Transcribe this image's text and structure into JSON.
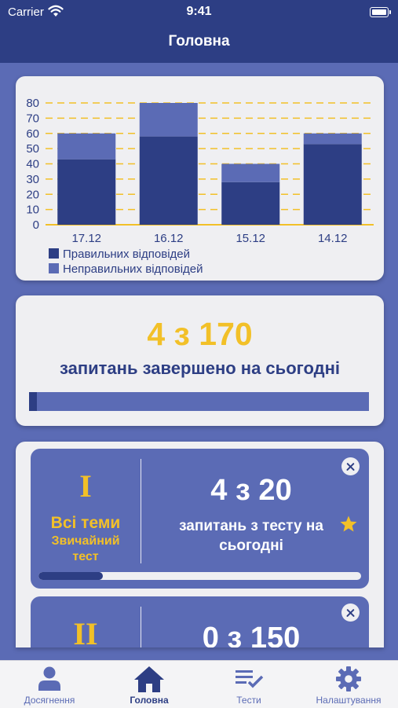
{
  "status_bar": {
    "carrier": "Carrier",
    "time": "9:41"
  },
  "nav": {
    "title": "Головна"
  },
  "colors": {
    "primary": "#2d3e84",
    "secondary": "#5b6bb5",
    "accent": "#f2c028",
    "card": "#efeff2"
  },
  "chart_data": {
    "type": "bar",
    "stacked": true,
    "categories": [
      "17.12",
      "16.12",
      "15.12",
      "14.12"
    ],
    "series": [
      {
        "name": "Правильних відповідей",
        "values": [
          43,
          58,
          28,
          53
        ],
        "color": "#2d3e84"
      },
      {
        "name": "Неправильних відповідей",
        "values": [
          17,
          22,
          12,
          7
        ],
        "color": "#5b6bb5"
      }
    ],
    "yticks": [
      "0",
      "10",
      "20",
      "30",
      "40",
      "50",
      "60",
      "70",
      "80"
    ],
    "ylim": [
      0,
      80
    ],
    "grid": "dashed yellow horizontal",
    "legend": "bottom-left"
  },
  "daily_progress": {
    "count_text": "4 з 170",
    "label": "запитань завершено на сьогодні",
    "progress": 0.024
  },
  "tests": [
    {
      "numeral": "I",
      "topic": "Всі теми",
      "mode": "Звичайний тест",
      "count_text": "4 з 20",
      "description": "запитань з тесту на сьогодні",
      "progress": 0.2,
      "icons": [
        "close-icon",
        "star-icon"
      ]
    },
    {
      "numeral": "II",
      "count_text": "0 з 150",
      "icons": [
        "close-icon"
      ]
    }
  ],
  "tab_bar": {
    "items": [
      {
        "label": "Досягнення",
        "icon": "person-icon"
      },
      {
        "label": "Головна",
        "icon": "home-icon",
        "active": true
      },
      {
        "label": "Тести",
        "icon": "checklist-icon"
      },
      {
        "label": "Налаштування",
        "icon": "gear-icon"
      }
    ]
  }
}
